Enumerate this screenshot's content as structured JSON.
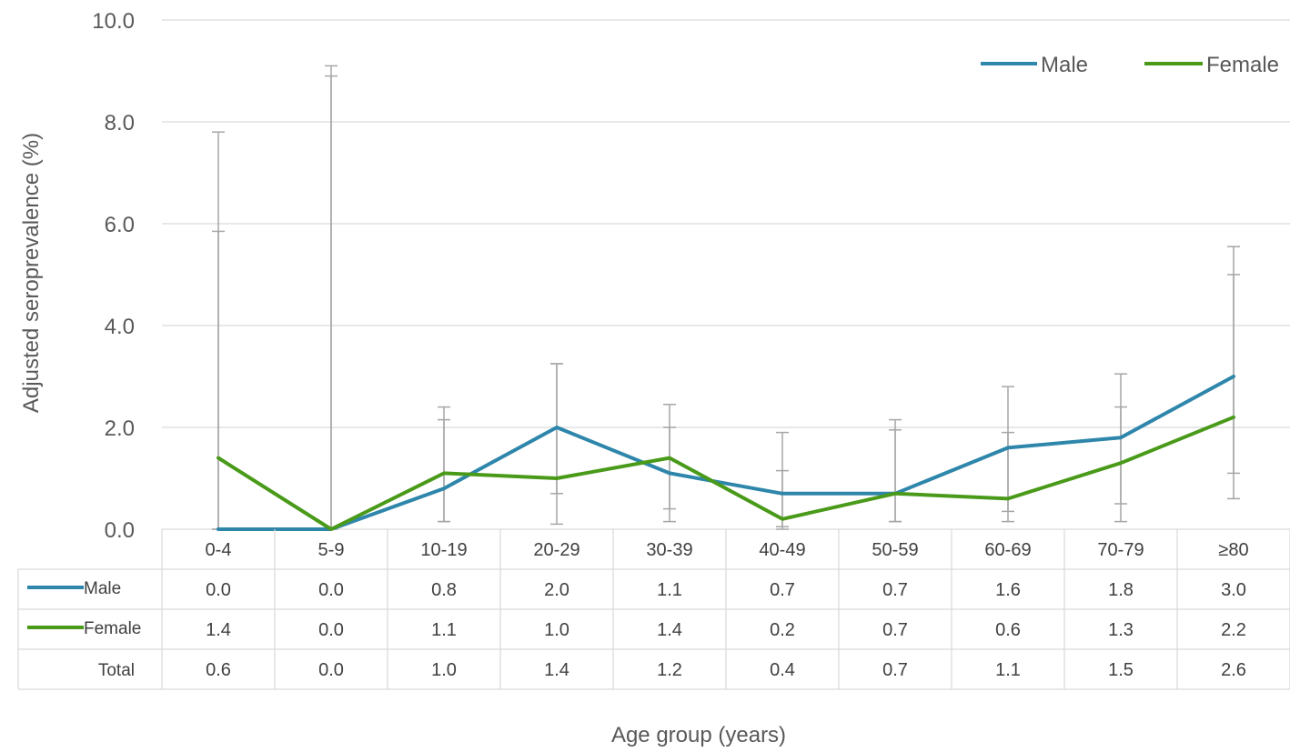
{
  "chart_data": {
    "type": "line",
    "xlabel": "Age group (years)",
    "ylabel": "Adjusted seroprevalence (%)",
    "ylim": [
      0,
      10
    ],
    "y_ticks": [
      "0.0",
      "2.0",
      "4.0",
      "6.0",
      "8.0",
      "10.0"
    ],
    "grid": true,
    "legend_position": "top-right",
    "categories": [
      "0-4",
      "5-9",
      "10-19",
      "20-29",
      "30-39",
      "40-49",
      "50-59",
      "60-69",
      "70-79",
      "≥80"
    ],
    "series": [
      {
        "name": "Male",
        "color": "#2e86ab",
        "values": [
          0.0,
          0.0,
          0.8,
          2.0,
          1.1,
          0.7,
          0.7,
          1.6,
          1.8,
          3.0
        ],
        "labels": [
          "0.0",
          "0.0",
          "0.8",
          "2.0",
          "1.1",
          "0.7",
          "0.7",
          "1.6",
          "1.8",
          "3.0"
        ],
        "ci_low": [
          0.0,
          0.0,
          0.15,
          0.7,
          0.4,
          0.05,
          0.15,
          0.35,
          0.5,
          1.1
        ],
        "ci_high": [
          5.85,
          8.9,
          2.15,
          3.25,
          2.0,
          1.15,
          1.95,
          1.9,
          2.4,
          5.0
        ]
      },
      {
        "name": "Female",
        "color": "#4a9a1a",
        "values": [
          1.4,
          0.0,
          1.1,
          1.0,
          1.4,
          0.2,
          0.7,
          0.6,
          1.3,
          2.2
        ],
        "labels": [
          "1.4",
          "0.0",
          "1.1",
          "1.0",
          "1.4",
          "0.2",
          "0.7",
          "0.6",
          "1.3",
          "2.2"
        ],
        "ci_low": [
          0.0,
          0.0,
          0.15,
          0.1,
          0.15,
          0.0,
          0.15,
          0.15,
          0.15,
          0.6
        ],
        "ci_high": [
          7.8,
          9.1,
          2.4,
          3.25,
          2.45,
          1.9,
          2.15,
          2.8,
          3.05,
          5.55
        ]
      }
    ],
    "table_rows": [
      {
        "label": "Male",
        "color": "#2e86ab",
        "cells": [
          "0.0",
          "0.0",
          "0.8",
          "2.0",
          "1.1",
          "0.7",
          "0.7",
          "1.6",
          "1.8",
          "3.0"
        ]
      },
      {
        "label": "Female",
        "color": "#4a9a1a",
        "cells": [
          "1.4",
          "0.0",
          "1.1",
          "1.0",
          "1.4",
          "0.2",
          "0.7",
          "0.6",
          "1.3",
          "2.2"
        ]
      },
      {
        "label": "Total",
        "color": "",
        "cells": [
          "0.6",
          "0.0",
          "1.0",
          "1.4",
          "1.2",
          "0.4",
          "0.7",
          "1.1",
          "1.5",
          "2.6"
        ]
      }
    ]
  }
}
